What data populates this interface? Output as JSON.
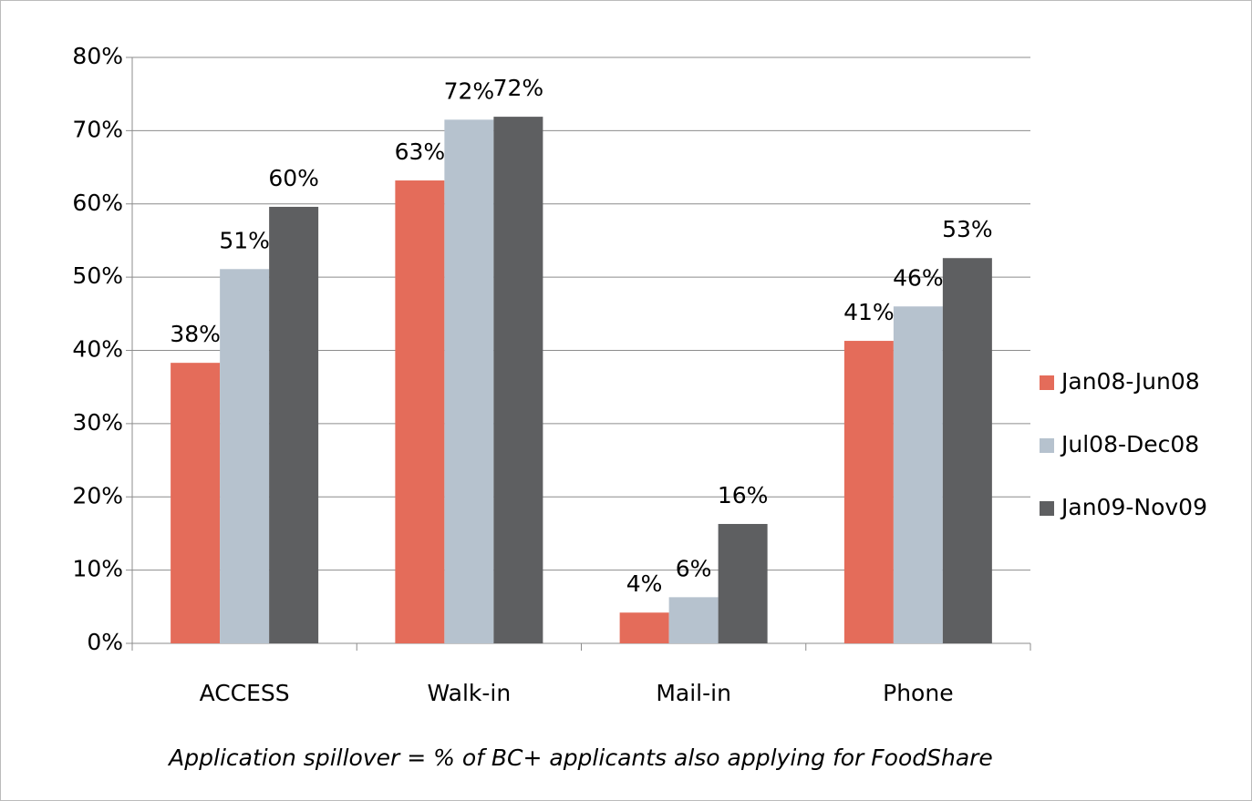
{
  "chart_data": {
    "type": "bar",
    "categories": [
      "ACCESS",
      "Walk-in",
      "Mail-in",
      "Phone"
    ],
    "series": [
      {
        "name": "Jan08-Jun08",
        "color": "#e46c5a",
        "values": [
          38.3,
          63.2,
          4.2,
          41.3
        ],
        "value_labels": [
          "38%",
          "63%",
          "4%",
          "41%"
        ]
      },
      {
        "name": "Jul08-Dec08",
        "color": "#b6c2ce",
        "values": [
          51.1,
          71.5,
          6.3,
          46.0
        ],
        "value_labels": [
          "51%",
          "72%",
          "6%",
          "46%"
        ]
      },
      {
        "name": "Jan09-Nov09",
        "color": "#5e5f61",
        "values": [
          59.6,
          71.9,
          16.3,
          52.6
        ],
        "value_labels": [
          "60%",
          "72%",
          "16%",
          "53%"
        ]
      }
    ],
    "ylim": [
      0,
      80
    ],
    "yticks": [
      {
        "value": 0,
        "label": "0%"
      },
      {
        "value": 10,
        "label": "10%"
      },
      {
        "value": 20,
        "label": "20%"
      },
      {
        "value": 30,
        "label": "30%"
      },
      {
        "value": 40,
        "label": "40%"
      },
      {
        "value": 50,
        "label": "50%"
      },
      {
        "value": 60,
        "label": "60%"
      },
      {
        "value": 70,
        "label": "70%"
      },
      {
        "value": 80,
        "label": "80%"
      }
    ],
    "grid": true,
    "legend": "right",
    "annotation": "Application  spillover = % of BC+ applicants also applying for FoodShare"
  }
}
